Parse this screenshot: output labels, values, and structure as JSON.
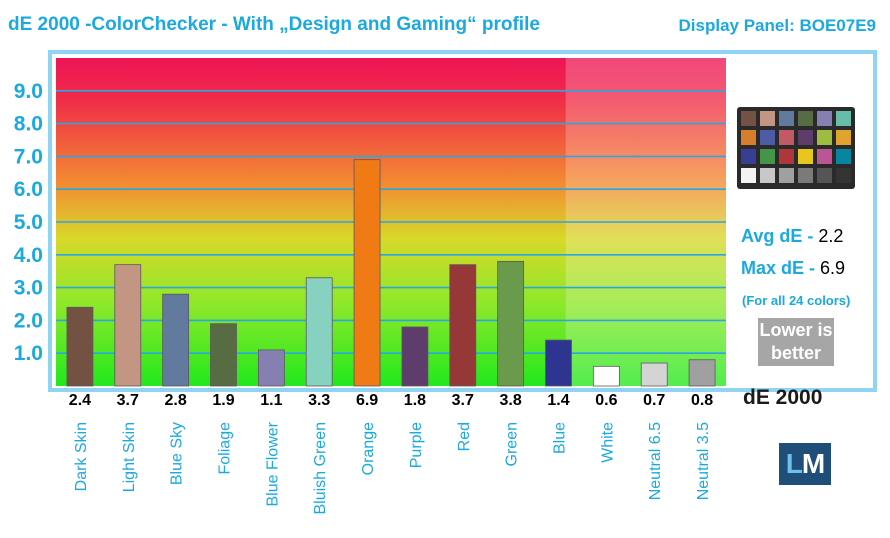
{
  "header": {
    "title": "dE 2000 -ColorChecker - With „Design and Gaming“ profile",
    "panel": "Display Panel: BOE07E9"
  },
  "stats": {
    "avg_label": "Avg dE - ",
    "avg_value": "2.2",
    "max_label": "Max dE - ",
    "max_value": "6.9",
    "note": "(For all 24 colors)",
    "lower_line1": "Lower is",
    "lower_line2": "better",
    "metric_label": "dE 2000"
  },
  "logo": {
    "part1": "L",
    "part2": "M"
  },
  "chart_data": {
    "type": "bar",
    "title": "dE 2000 -ColorChecker - With „Design and Gaming“ profile",
    "xlabel": "",
    "ylabel": "",
    "ylim": [
      0,
      10
    ],
    "yticks": [
      "1.0",
      "2.0",
      "3.0",
      "4.0",
      "5.0",
      "6.0",
      "7.0",
      "8.0",
      "9.0"
    ],
    "grid": true,
    "categories": [
      "Dark Skin",
      "Light Skin",
      "Blue Sky",
      "Foliage",
      "Blue Flower",
      "Bluish Green",
      "Orange",
      "Purple",
      "Red",
      "Green",
      "Blue",
      "White",
      "Neutral 6.5",
      "Neutral 3.5"
    ],
    "values": [
      2.4,
      3.7,
      2.8,
      1.9,
      1.1,
      3.3,
      6.9,
      1.8,
      3.7,
      3.8,
      1.4,
      0.6,
      0.7,
      0.8
    ],
    "value_labels": [
      "2.4",
      "3.7",
      "2.8",
      "1.9",
      "1.1",
      "3.3",
      "6.9",
      "1.8",
      "3.7",
      "3.8",
      "1.4",
      "0.6",
      "0.7",
      "0.8"
    ],
    "colors": [
      "#735244",
      "#c29682",
      "#627a9d",
      "#576c43",
      "#8580b1",
      "#86d1c0",
      "#f07a14",
      "#5e3d6c",
      "#963838",
      "#6a9b4c",
      "#2e3590",
      "#ffffff",
      "#d4d4d4",
      "#a0a0a0"
    ]
  },
  "checker_colors": [
    "#735244",
    "#c29682",
    "#627a9d",
    "#576c43",
    "#8580b1",
    "#67bdaa",
    "#d67e2c",
    "#505ba6",
    "#c15a63",
    "#5e3c6c",
    "#9dbc40",
    "#e0a32e",
    "#383d96",
    "#469449",
    "#af363c",
    "#e7c71f",
    "#bb5695",
    "#0885a1",
    "#f3f3f2",
    "#c8c8c8",
    "#a0a0a0",
    "#7a7a79",
    "#555555",
    "#343434"
  ]
}
